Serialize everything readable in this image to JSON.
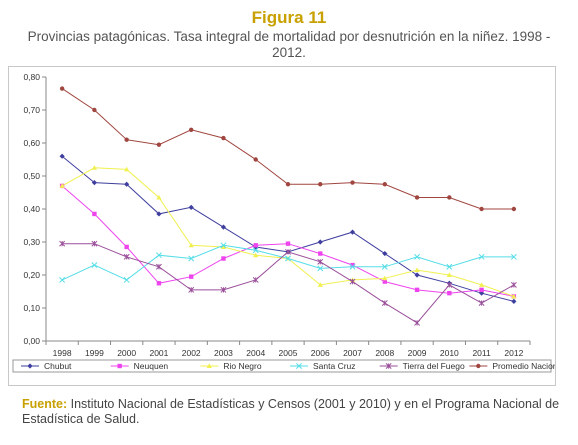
{
  "figure": {
    "label": "Figura 11",
    "title": "Provincias patagónicas.  Tasa integral de mortalidad por desnutrición en la niñez. 1998 - 2012."
  },
  "source": {
    "label": "Fuente:",
    "text": " Instituto Nacional de Estadísticas y Censos (2001 y 2010) y en el Programa Nacional de Estadística de Salud."
  },
  "chart_data": {
    "type": "line",
    "title": "",
    "xlabel": "",
    "ylabel": "",
    "ylim": [
      0,
      0.8
    ],
    "y_ticks": [
      "0,00",
      "0,10",
      "0,20",
      "0,30",
      "0,40",
      "0,50",
      "0,60",
      "0,70",
      "0,80"
    ],
    "grid": false,
    "legend_position": "bottom",
    "categories": [
      "1998",
      "1999",
      "2000",
      "2001",
      "2002",
      "2003",
      "2004",
      "2005",
      "2006",
      "2007",
      "2008",
      "2009",
      "2010",
      "2011",
      "2012"
    ],
    "series": [
      {
        "name": "Chubut",
        "color": "#3f3f9f",
        "marker": "diamond",
        "values": [
          0.56,
          0.48,
          0.475,
          0.385,
          0.405,
          0.345,
          0.285,
          0.27,
          0.3,
          0.33,
          0.265,
          0.2,
          0.175,
          0.145,
          0.12
        ]
      },
      {
        "name": "Neuquen",
        "color": "#ee44ee",
        "marker": "square",
        "values": [
          0.47,
          0.385,
          0.285,
          0.175,
          0.195,
          0.25,
          0.29,
          0.295,
          0.265,
          0.23,
          0.18,
          0.155,
          0.145,
          0.155,
          0.135
        ]
      },
      {
        "name": "Rio Negro",
        "color": "#f0f050",
        "marker": "triangle",
        "values": [
          0.47,
          0.525,
          0.52,
          0.435,
          0.29,
          0.285,
          0.26,
          0.25,
          0.17,
          0.185,
          0.19,
          0.215,
          0.2,
          0.17,
          0.135
        ]
      },
      {
        "name": "Santa Cruz",
        "color": "#55dde8",
        "marker": "x",
        "values": [
          0.185,
          0.23,
          0.185,
          0.26,
          0.25,
          0.29,
          0.275,
          0.25,
          0.22,
          0.225,
          0.225,
          0.255,
          0.225,
          0.255,
          0.255
        ]
      },
      {
        "name": "Tierra del Fuego",
        "color": "#9a4f9a",
        "marker": "star",
        "values": [
          0.295,
          0.295,
          0.255,
          0.225,
          0.155,
          0.155,
          0.185,
          0.27,
          0.24,
          0.18,
          0.115,
          0.055,
          0.17,
          0.115,
          0.17
        ]
      },
      {
        "name": "Promedio Nacional",
        "color": "#a0453f",
        "marker": "circle",
        "values": [
          0.765,
          0.7,
          0.61,
          0.595,
          0.64,
          0.615,
          0.55,
          0.475,
          0.475,
          0.48,
          0.475,
          0.435,
          0.435,
          0.4,
          0.4
        ]
      }
    ]
  }
}
